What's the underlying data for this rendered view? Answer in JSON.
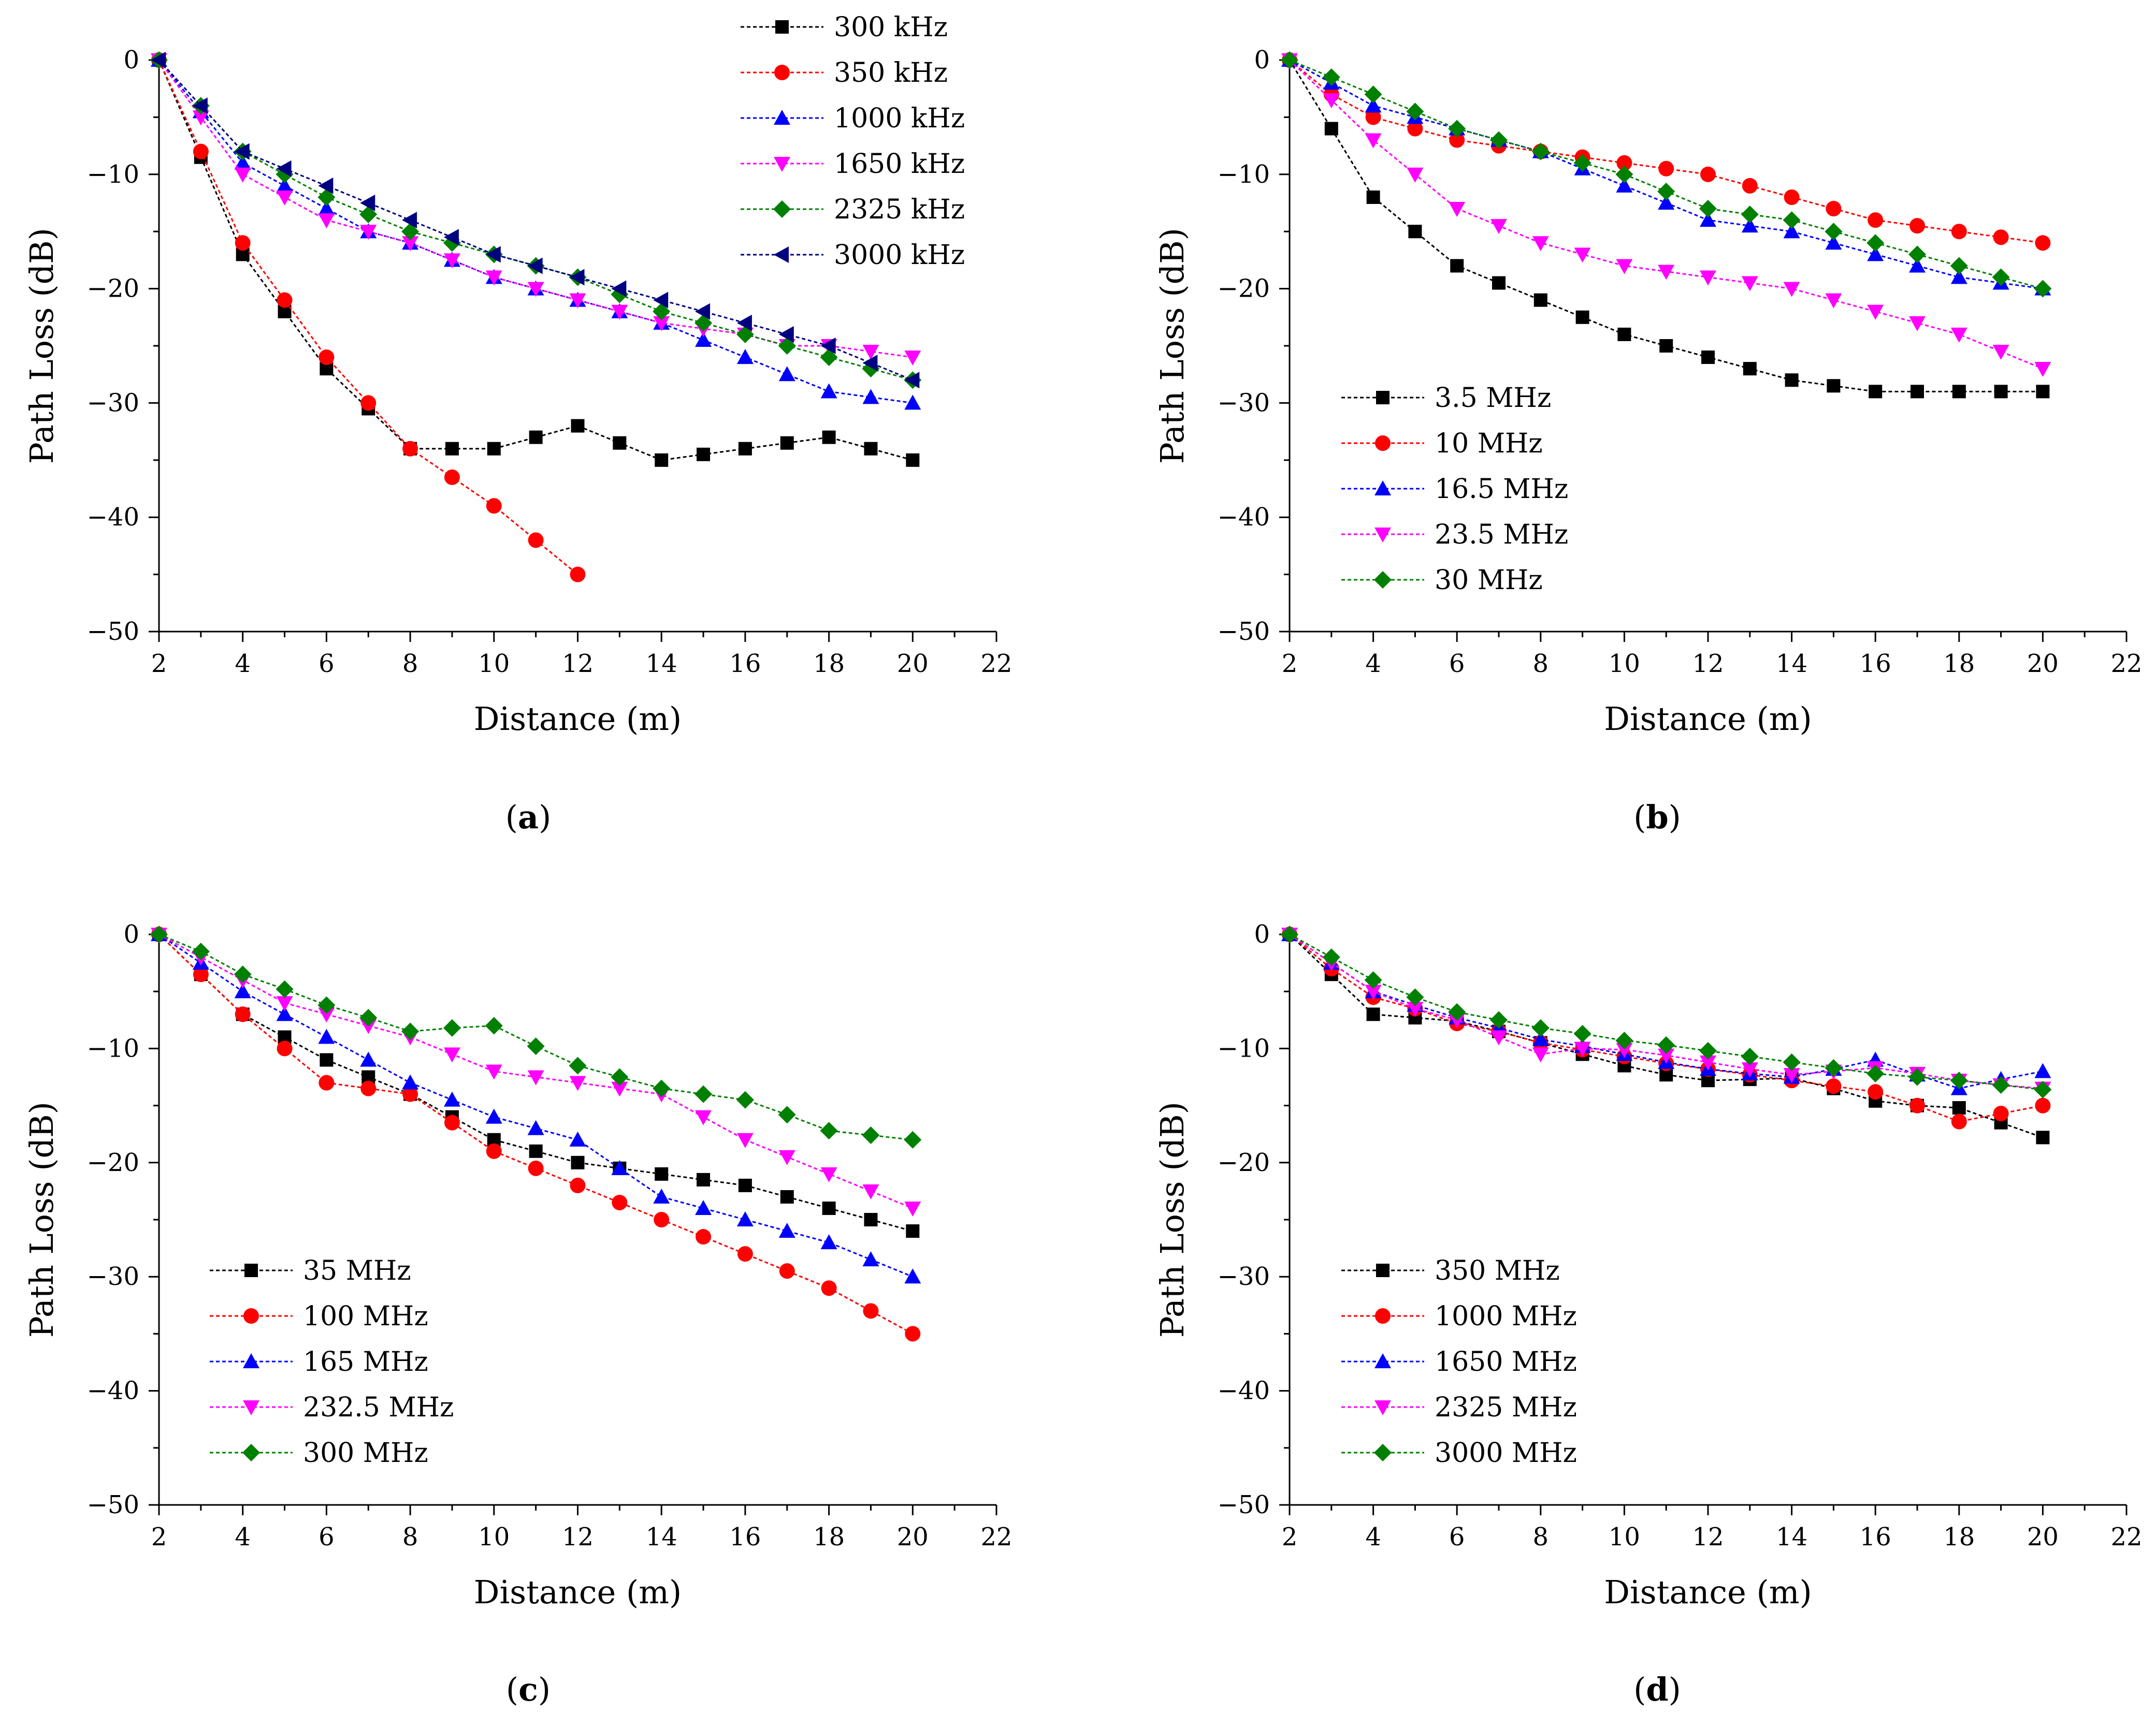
{
  "chart_data": [
    {
      "type": "line",
      "panel_label": "a",
      "xlabel": "Distance (m)",
      "ylabel": "Path Loss (dB)",
      "xlim": [
        2,
        22
      ],
      "ylim": [
        -50,
        0
      ],
      "xticks": [
        2,
        4,
        6,
        8,
        10,
        12,
        14,
        16,
        18,
        20,
        22
      ],
      "yticks": [
        0,
        -10,
        -20,
        -30,
        -40,
        -50
      ],
      "legend_position": "top-right",
      "series": [
        {
          "name": "300 kHz",
          "color": "#000000",
          "marker": "square",
          "x": [
            2,
            3,
            4,
            5,
            6,
            7,
            8,
            9,
            10,
            11,
            12,
            13,
            14,
            15,
            16,
            17,
            18,
            19,
            20
          ],
          "y": [
            0,
            -8.5,
            -17,
            -22,
            -27,
            -30.5,
            -34,
            -34,
            -34,
            -33,
            -32,
            -33.5,
            -35,
            -34.5,
            -34,
            -33.5,
            -33,
            -34,
            -35
          ]
        },
        {
          "name": "350 kHz",
          "color": "#ff0000",
          "marker": "circle",
          "x": [
            2,
            3,
            4,
            5,
            6,
            7,
            8,
            9,
            10,
            11,
            12
          ],
          "y": [
            0,
            -8,
            -16,
            -21,
            -26,
            -30,
            -34,
            -36.5,
            -39,
            -42,
            -45
          ]
        },
        {
          "name": "1000 kHz",
          "color": "#0000ff",
          "marker": "triangle-up",
          "x": [
            2,
            3,
            4,
            5,
            6,
            7,
            8,
            9,
            10,
            11,
            12,
            13,
            14,
            15,
            16,
            17,
            18,
            19,
            20
          ],
          "y": [
            0,
            -4.5,
            -9,
            -11,
            -13,
            -15,
            -16,
            -17.5,
            -19,
            -20,
            -21,
            -22,
            -23,
            -24.5,
            -26,
            -27.5,
            -29,
            -29.5,
            -30
          ]
        },
        {
          "name": "1650 kHz",
          "color": "#ff00ff",
          "marker": "triangle-down",
          "x": [
            2,
            3,
            4,
            5,
            6,
            7,
            8,
            9,
            10,
            11,
            12,
            13,
            14,
            15,
            16,
            17,
            18,
            19,
            20
          ],
          "y": [
            0,
            -5,
            -10,
            -12,
            -14,
            -15,
            -16,
            -17.5,
            -19,
            -20,
            -21,
            -22,
            -23,
            -23.5,
            -24,
            -25,
            -25,
            -25.5,
            -26
          ]
        },
        {
          "name": "2325 kHz",
          "color": "#008000",
          "marker": "diamond",
          "x": [
            2,
            3,
            4,
            5,
            6,
            7,
            8,
            9,
            10,
            11,
            12,
            13,
            14,
            15,
            16,
            17,
            18,
            19,
            20
          ],
          "y": [
            0,
            -4,
            -8,
            -10,
            -12,
            -13.5,
            -15,
            -16,
            -17,
            -18,
            -19,
            -20.5,
            -22,
            -23,
            -24,
            -25,
            -26,
            -27,
            -28
          ]
        },
        {
          "name": "3000 kHz",
          "color": "#000080",
          "marker": "triangle-left",
          "x": [
            2,
            3,
            4,
            5,
            6,
            7,
            8,
            9,
            10,
            11,
            12,
            13,
            14,
            15,
            16,
            17,
            18,
            19,
            20
          ],
          "y": [
            0,
            -4,
            -8,
            -9.5,
            -11,
            -12.5,
            -14,
            -15.5,
            -17,
            -18,
            -19,
            -20,
            -21,
            -22,
            -23,
            -24,
            -25,
            -26.5,
            -28
          ]
        }
      ]
    },
    {
      "type": "line",
      "panel_label": "b",
      "xlabel": "Distance (m)",
      "ylabel": "Path Loss (dB)",
      "xlim": [
        2,
        22
      ],
      "ylim": [
        -50,
        0
      ],
      "xticks": [
        2,
        4,
        6,
        8,
        10,
        12,
        14,
        16,
        18,
        20,
        22
      ],
      "yticks": [
        0,
        -10,
        -20,
        -30,
        -40,
        -50
      ],
      "legend_position": "bottom-left",
      "series": [
        {
          "name": "3.5 MHz",
          "color": "#000000",
          "marker": "square",
          "x": [
            2,
            3,
            4,
            5,
            6,
            7,
            8,
            9,
            10,
            11,
            12,
            13,
            14,
            15,
            16,
            17,
            18,
            19,
            20
          ],
          "y": [
            0,
            -6,
            -12,
            -15,
            -18,
            -19.5,
            -21,
            -22.5,
            -24,
            -25,
            -26,
            -27,
            -28,
            -28.5,
            -29,
            -29,
            -29,
            -29,
            -29
          ]
        },
        {
          "name": "10 MHz",
          "color": "#ff0000",
          "marker": "circle",
          "x": [
            2,
            3,
            4,
            5,
            6,
            7,
            8,
            9,
            10,
            11,
            12,
            13,
            14,
            15,
            16,
            17,
            18,
            19,
            20
          ],
          "y": [
            0,
            -3,
            -5,
            -6,
            -7,
            -7.5,
            -8,
            -8.5,
            -9,
            -9.5,
            -10,
            -11,
            -12,
            -13,
            -14,
            -14.5,
            -15,
            -15.5,
            -16
          ]
        },
        {
          "name": "16.5 MHz",
          "color": "#0000ff",
          "marker": "triangle-up",
          "x": [
            2,
            3,
            4,
            5,
            6,
            7,
            8,
            9,
            10,
            11,
            12,
            13,
            14,
            15,
            16,
            17,
            18,
            19,
            20
          ],
          "y": [
            0,
            -2,
            -4,
            -5,
            -6,
            -7,
            -8,
            -9.5,
            -11,
            -12.5,
            -14,
            -14.5,
            -15,
            -16,
            -17,
            -18,
            -19,
            -19.5,
            -20
          ]
        },
        {
          "name": "23.5 MHz",
          "color": "#ff00ff",
          "marker": "triangle-down",
          "x": [
            2,
            3,
            4,
            5,
            6,
            7,
            8,
            9,
            10,
            11,
            12,
            13,
            14,
            15,
            16,
            17,
            18,
            19,
            20
          ],
          "y": [
            0,
            -3.5,
            -7,
            -10,
            -13,
            -14.5,
            -16,
            -17,
            -18,
            -18.5,
            -19,
            -19.5,
            -20,
            -21,
            -22,
            -23,
            -24,
            -25.5,
            -27
          ]
        },
        {
          "name": "30 MHz",
          "color": "#008000",
          "marker": "diamond",
          "x": [
            2,
            3,
            4,
            5,
            6,
            7,
            8,
            9,
            10,
            11,
            12,
            13,
            14,
            15,
            16,
            17,
            18,
            19,
            20
          ],
          "y": [
            0,
            -1.5,
            -3,
            -4.5,
            -6,
            -7,
            -8,
            -9,
            -10,
            -11.5,
            -13,
            -13.5,
            -14,
            -15,
            -16,
            -17,
            -18,
            -19,
            -20
          ]
        }
      ]
    },
    {
      "type": "line",
      "panel_label": "c",
      "xlabel": "Distance (m)",
      "ylabel": "Path Loss (dB)",
      "xlim": [
        2,
        22
      ],
      "ylim": [
        -50,
        0
      ],
      "xticks": [
        2,
        4,
        6,
        8,
        10,
        12,
        14,
        16,
        18,
        20,
        22
      ],
      "yticks": [
        0,
        -10,
        -20,
        -30,
        -40,
        -50
      ],
      "legend_position": "bottom-left",
      "series": [
        {
          "name": "35 MHz",
          "color": "#000000",
          "marker": "square",
          "x": [
            2,
            3,
            4,
            5,
            6,
            7,
            8,
            9,
            10,
            11,
            12,
            13,
            14,
            15,
            16,
            17,
            18,
            19,
            20
          ],
          "y": [
            0,
            -3.5,
            -7,
            -9,
            -11,
            -12.5,
            -14,
            -16,
            -18,
            -19,
            -20,
            -20.5,
            -21,
            -21.5,
            -22,
            -23,
            -24,
            -25,
            -26
          ]
        },
        {
          "name": "100 MHz",
          "color": "#ff0000",
          "marker": "circle",
          "x": [
            2,
            3,
            4,
            5,
            6,
            7,
            8,
            9,
            10,
            11,
            12,
            13,
            14,
            15,
            16,
            17,
            18,
            19,
            20
          ],
          "y": [
            0,
            -3.5,
            -7,
            -10,
            -13,
            -13.5,
            -14,
            -16.5,
            -19,
            -20.5,
            -22,
            -23.5,
            -25,
            -26.5,
            -28,
            -29.5,
            -31,
            -33,
            -35
          ]
        },
        {
          "name": "165 MHz",
          "color": "#0000ff",
          "marker": "triangle-up",
          "x": [
            2,
            3,
            4,
            5,
            6,
            7,
            8,
            9,
            10,
            11,
            12,
            13,
            14,
            15,
            16,
            17,
            18,
            19,
            20
          ],
          "y": [
            0,
            -2.5,
            -5,
            -7,
            -9,
            -11,
            -13,
            -14.5,
            -16,
            -17,
            -18,
            -20.5,
            -23,
            -24,
            -25,
            -26,
            -27,
            -28.5,
            -30
          ]
        },
        {
          "name": "232.5 MHz",
          "color": "#ff00ff",
          "marker": "triangle-down",
          "x": [
            2,
            3,
            4,
            5,
            6,
            7,
            8,
            9,
            10,
            11,
            12,
            13,
            14,
            15,
            16,
            17,
            18,
            19,
            20
          ],
          "y": [
            0,
            -2,
            -4,
            -6,
            -7,
            -8,
            -9,
            -10.5,
            -12,
            -12.5,
            -13,
            -13.5,
            -14,
            -16,
            -18,
            -19.5,
            -21,
            -22.5,
            -24
          ]
        },
        {
          "name": "300 MHz",
          "color": "#008000",
          "marker": "diamond",
          "x": [
            2,
            3,
            4,
            5,
            6,
            7,
            8,
            9,
            10,
            11,
            12,
            13,
            14,
            15,
            16,
            17,
            18,
            19,
            20
          ],
          "y": [
            0,
            -1.5,
            -3.5,
            -4.8,
            -6.2,
            -7.3,
            -8.5,
            -8.2,
            -8,
            -9.8,
            -11.5,
            -12.5,
            -13.5,
            -14,
            -14.5,
            -15.8,
            -17.2,
            -17.6,
            -18
          ]
        }
      ]
    },
    {
      "type": "line",
      "panel_label": "d",
      "xlabel": "Distance (m)",
      "ylabel": "Path Loss (dB)",
      "xlim": [
        2,
        22
      ],
      "ylim": [
        -50,
        0
      ],
      "xticks": [
        2,
        4,
        6,
        8,
        10,
        12,
        14,
        16,
        18,
        20,
        22
      ],
      "yticks": [
        0,
        -10,
        -20,
        -30,
        -40,
        -50
      ],
      "legend_position": "bottom-left",
      "series": [
        {
          "name": "350 MHz",
          "color": "#000000",
          "marker": "square",
          "x": [
            2,
            3,
            4,
            5,
            6,
            7,
            8,
            9,
            10,
            11,
            12,
            13,
            14,
            15,
            16,
            17,
            18,
            19,
            20
          ],
          "y": [
            0,
            -3.5,
            -7,
            -7.3,
            -7.6,
            -8.5,
            -9.5,
            -10.5,
            -11.5,
            -12.3,
            -12.8,
            -12.7,
            -12.6,
            -13.5,
            -14.6,
            -15,
            -15.2,
            -16.5,
            -17.8
          ]
        },
        {
          "name": "1000 MHz",
          "color": "#ff0000",
          "marker": "circle",
          "x": [
            2,
            3,
            4,
            5,
            6,
            7,
            8,
            9,
            10,
            11,
            12,
            13,
            14,
            15,
            16,
            17,
            18,
            19,
            20
          ],
          "y": [
            0,
            -3,
            -5.5,
            -6.5,
            -7.8,
            -8.5,
            -9.5,
            -10.1,
            -10.7,
            -11.3,
            -11.8,
            -12.3,
            -12.8,
            -13.3,
            -13.8,
            -15,
            -16.4,
            -15.7,
            -15
          ]
        },
        {
          "name": "1650 MHz",
          "color": "#0000ff",
          "marker": "triangle-up",
          "x": [
            2,
            3,
            4,
            5,
            6,
            7,
            8,
            9,
            10,
            11,
            12,
            13,
            14,
            15,
            16,
            17,
            18,
            19,
            20
          ],
          "y": [
            0,
            -2.5,
            -5,
            -6.2,
            -7.3,
            -8.2,
            -9.2,
            -9.8,
            -10.5,
            -11.2,
            -11.8,
            -12.2,
            -12.5,
            -11.8,
            -11,
            -12.3,
            -13.5,
            -12.7,
            -12
          ]
        },
        {
          "name": "2325 MHz",
          "color": "#ff00ff",
          "marker": "triangle-down",
          "x": [
            2,
            3,
            4,
            5,
            6,
            7,
            8,
            9,
            10,
            11,
            12,
            13,
            14,
            15,
            16,
            17,
            18,
            19,
            20
          ],
          "y": [
            0,
            -2.5,
            -5,
            -6.5,
            -7.5,
            -9,
            -10.5,
            -10,
            -10.1,
            -10.6,
            -11.2,
            -11.8,
            -12.3,
            -12,
            -11.7,
            -12.2,
            -12.8,
            -13.2,
            -13.5
          ]
        },
        {
          "name": "3000 MHz",
          "color": "#008000",
          "marker": "diamond",
          "x": [
            2,
            3,
            4,
            5,
            6,
            7,
            8,
            9,
            10,
            11,
            12,
            13,
            14,
            15,
            16,
            17,
            18,
            19,
            20
          ],
          "y": [
            0,
            -2,
            -4,
            -5.5,
            -6.8,
            -7.5,
            -8.2,
            -8.7,
            -9.3,
            -9.7,
            -10.2,
            -10.7,
            -11.2,
            -11.7,
            -12.2,
            -12.5,
            -12.8,
            -13.2,
            -13.6
          ]
        }
      ]
    }
  ]
}
